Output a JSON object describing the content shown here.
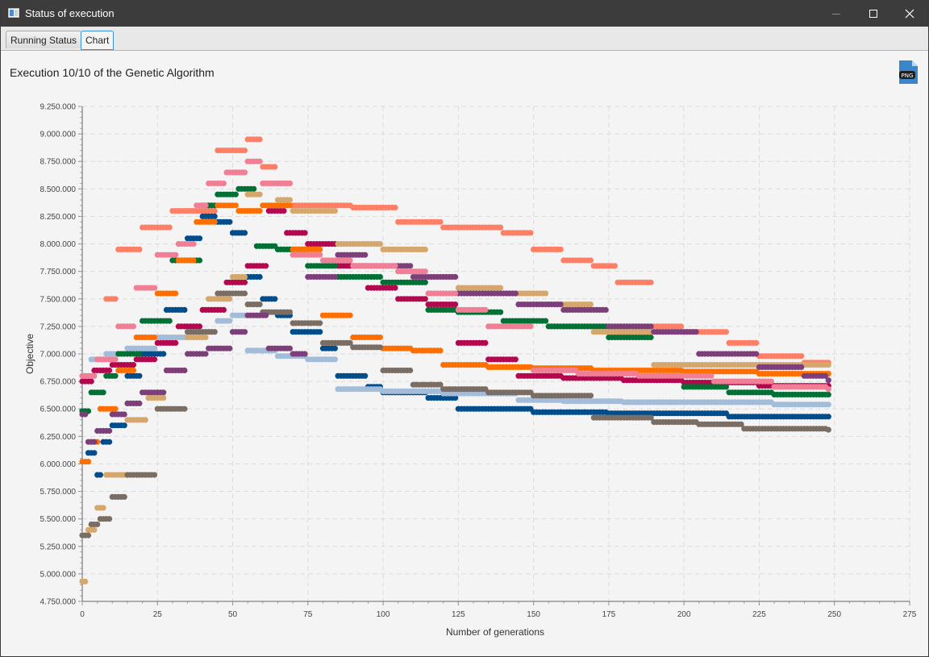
{
  "window": {
    "title": "Status of execution"
  },
  "tabs": [
    {
      "label": "Running Status",
      "active": false
    },
    {
      "label": "Chart",
      "active": true
    }
  ],
  "header": {
    "execution_title": "Execution 10/10 of the Genetic Algorithm",
    "png_label": "PNG"
  },
  "colors": {
    "titlebar": "#3c3c3c",
    "tab_active_border": "#3b8fd6"
  },
  "chart_data": {
    "type": "scatter",
    "title": "",
    "xlabel": "Number of generations",
    "ylabel": "Objective",
    "xlim": [
      0,
      275
    ],
    "ylim": [
      4750000,
      9250000
    ],
    "x_ticks": [
      "0",
      "25",
      "50",
      "75",
      "100",
      "125",
      "150",
      "175",
      "200",
      "225",
      "250",
      "275"
    ],
    "y_ticks": [
      "4.750.000",
      "5.000.000",
      "5.250.000",
      "5.500.000",
      "5.750.000",
      "6.000.000",
      "6.250.000",
      "6.500.000",
      "6.750.000",
      "7.000.000",
      "7.250.000",
      "7.500.000",
      "7.750.000",
      "8.000.000",
      "8.250.000",
      "8.500.000",
      "8.750.000",
      "9.000.000",
      "9.250.000"
    ],
    "grid": true,
    "legend": "none",
    "series": [
      {
        "color": "#ff7f66",
        "points": [
          [
            8,
            7500000
          ],
          [
            12,
            7950000
          ],
          [
            20,
            8150000
          ],
          [
            30,
            8300000
          ],
          [
            45,
            8850000
          ],
          [
            55,
            8950000
          ],
          [
            60,
            8700000
          ],
          [
            65,
            8550000
          ],
          [
            70,
            8350000
          ],
          [
            90,
            8330000
          ],
          [
            105,
            8200000
          ],
          [
            120,
            8150000
          ],
          [
            140,
            8100000
          ],
          [
            150,
            7950000
          ],
          [
            160,
            7850000
          ],
          [
            170,
            7800000
          ],
          [
            178,
            7650000
          ],
          [
            190,
            7250000
          ],
          [
            200,
            7200000
          ],
          [
            215,
            7100000
          ],
          [
            225,
            6980000
          ],
          [
            240,
            6920000
          ],
          [
            248,
            6920000
          ]
        ]
      },
      {
        "color": "#004d8c",
        "points": [
          [
            0,
            6480000
          ],
          [
            2,
            6100000
          ],
          [
            5,
            5900000
          ],
          [
            7,
            6200000
          ],
          [
            10,
            6350000
          ],
          [
            15,
            6800000
          ],
          [
            20,
            7000000
          ],
          [
            28,
            7400000
          ],
          [
            35,
            8050000
          ],
          [
            40,
            8250000
          ],
          [
            45,
            8200000
          ],
          [
            50,
            8100000
          ],
          [
            55,
            7700000
          ],
          [
            60,
            7500000
          ],
          [
            65,
            7350000
          ],
          [
            70,
            7200000
          ],
          [
            80,
            7050000
          ],
          [
            85,
            6800000
          ],
          [
            95,
            6700000
          ],
          [
            100,
            6650000
          ],
          [
            115,
            6600000
          ],
          [
            125,
            6500000
          ],
          [
            150,
            6470000
          ],
          [
            175,
            6460000
          ],
          [
            200,
            6460000
          ],
          [
            215,
            6430000
          ],
          [
            248,
            6430000
          ]
        ]
      },
      {
        "color": "#a3bcd9",
        "points": [
          [
            0,
            6800000
          ],
          [
            3,
            6950000
          ],
          [
            8,
            7000000
          ],
          [
            15,
            7050000
          ],
          [
            25,
            7150000
          ],
          [
            35,
            7200000
          ],
          [
            45,
            7300000
          ],
          [
            50,
            7350000
          ],
          [
            55,
            7030000
          ],
          [
            65,
            6980000
          ],
          [
            75,
            6950000
          ],
          [
            85,
            6680000
          ],
          [
            100,
            6660000
          ],
          [
            120,
            6640000
          ],
          [
            145,
            6580000
          ],
          [
            160,
            6570000
          ],
          [
            180,
            6560000
          ],
          [
            200,
            6560000
          ],
          [
            230,
            6540000
          ],
          [
            248,
            6540000
          ]
        ]
      },
      {
        "color": "#b4084e",
        "points": [
          [
            0,
            6750000
          ],
          [
            4,
            6850000
          ],
          [
            10,
            6900000
          ],
          [
            18,
            6950000
          ],
          [
            25,
            7100000
          ],
          [
            32,
            7250000
          ],
          [
            40,
            7400000
          ],
          [
            48,
            7650000
          ],
          [
            55,
            7800000
          ],
          [
            62,
            8300000
          ],
          [
            68,
            8100000
          ],
          [
            75,
            8000000
          ],
          [
            85,
            7800000
          ],
          [
            95,
            7600000
          ],
          [
            105,
            7500000
          ],
          [
            115,
            7450000
          ],
          [
            125,
            7100000
          ],
          [
            135,
            6950000
          ],
          [
            145,
            6800000
          ],
          [
            160,
            6780000
          ],
          [
            180,
            6760000
          ],
          [
            200,
            6740000
          ],
          [
            225,
            6710000
          ],
          [
            248,
            6710000
          ]
        ]
      },
      {
        "color": "#007034",
        "points": [
          [
            0,
            6480000
          ],
          [
            3,
            6650000
          ],
          [
            8,
            6800000
          ],
          [
            12,
            7000000
          ],
          [
            20,
            7300000
          ],
          [
            30,
            7850000
          ],
          [
            40,
            8350000
          ],
          [
            45,
            8450000
          ],
          [
            52,
            8500000
          ],
          [
            58,
            7980000
          ],
          [
            65,
            7950000
          ],
          [
            75,
            7800000
          ],
          [
            85,
            7700000
          ],
          [
            100,
            7650000
          ],
          [
            115,
            7400000
          ],
          [
            125,
            7380000
          ],
          [
            140,
            7300000
          ],
          [
            155,
            7250000
          ],
          [
            175,
            7150000
          ],
          [
            190,
            6800000
          ],
          [
            200,
            6700000
          ],
          [
            215,
            6650000
          ],
          [
            230,
            6630000
          ],
          [
            248,
            6630000
          ]
        ]
      },
      {
        "color": "#ff6f00",
        "points": [
          [
            0,
            6020000
          ],
          [
            3,
            6200000
          ],
          [
            6,
            6500000
          ],
          [
            12,
            6850000
          ],
          [
            18,
            7150000
          ],
          [
            25,
            7550000
          ],
          [
            32,
            7850000
          ],
          [
            38,
            8200000
          ],
          [
            45,
            8350000
          ],
          [
            52,
            8300000
          ],
          [
            60,
            8350000
          ],
          [
            70,
            7950000
          ],
          [
            80,
            7350000
          ],
          [
            90,
            7150000
          ],
          [
            100,
            7050000
          ],
          [
            110,
            7030000
          ],
          [
            120,
            6900000
          ],
          [
            135,
            6880000
          ],
          [
            150,
            6870000
          ],
          [
            170,
            6850000
          ],
          [
            200,
            6840000
          ],
          [
            225,
            6820000
          ],
          [
            248,
            6820000
          ]
        ]
      },
      {
        "color": "#d5a76d",
        "points": [
          [
            0,
            4930000
          ],
          [
            2,
            5400000
          ],
          [
            5,
            5600000
          ],
          [
            8,
            5900000
          ],
          [
            15,
            6400000
          ],
          [
            22,
            6600000
          ],
          [
            28,
            6850000
          ],
          [
            35,
            7150000
          ],
          [
            42,
            7500000
          ],
          [
            50,
            7700000
          ],
          [
            55,
            8450000
          ],
          [
            60,
            8550000
          ],
          [
            65,
            8400000
          ],
          [
            70,
            8300000
          ],
          [
            85,
            8000000
          ],
          [
            100,
            7950000
          ],
          [
            115,
            7700000
          ],
          [
            125,
            7600000
          ],
          [
            140,
            7550000
          ],
          [
            155,
            7450000
          ],
          [
            170,
            7200000
          ],
          [
            190,
            6900000
          ],
          [
            210,
            6900000
          ],
          [
            230,
            6900000
          ],
          [
            248,
            6900000
          ]
        ]
      },
      {
        "color": "#7a6d63",
        "points": [
          [
            0,
            5350000
          ],
          [
            3,
            5450000
          ],
          [
            6,
            5500000
          ],
          [
            10,
            5700000
          ],
          [
            15,
            5900000
          ],
          [
            25,
            6500000
          ],
          [
            35,
            7200000
          ],
          [
            45,
            7550000
          ],
          [
            55,
            7450000
          ],
          [
            60,
            7380000
          ],
          [
            70,
            7280000
          ],
          [
            80,
            7100000
          ],
          [
            90,
            7060000
          ],
          [
            100,
            6850000
          ],
          [
            110,
            6720000
          ],
          [
            120,
            6680000
          ],
          [
            135,
            6650000
          ],
          [
            150,
            6620000
          ],
          [
            170,
            6420000
          ],
          [
            190,
            6380000
          ],
          [
            205,
            6360000
          ],
          [
            220,
            6320000
          ],
          [
            248,
            6310000
          ]
        ]
      },
      {
        "color": "#7d3f79",
        "points": [
          [
            0,
            6450000
          ],
          [
            2,
            6200000
          ],
          [
            5,
            6300000
          ],
          [
            10,
            6450000
          ],
          [
            15,
            6550000
          ],
          [
            20,
            6650000
          ],
          [
            28,
            6850000
          ],
          [
            35,
            7000000
          ],
          [
            42,
            7050000
          ],
          [
            50,
            7200000
          ],
          [
            55,
            7350000
          ],
          [
            62,
            7050000
          ],
          [
            70,
            7000000
          ],
          [
            75,
            7700000
          ],
          [
            85,
            7900000
          ],
          [
            95,
            7800000
          ],
          [
            110,
            7700000
          ],
          [
            125,
            7550000
          ],
          [
            145,
            7450000
          ],
          [
            160,
            7400000
          ],
          [
            175,
            7250000
          ],
          [
            190,
            7200000
          ],
          [
            205,
            7000000
          ],
          [
            225,
            6880000
          ],
          [
            240,
            6800000
          ],
          [
            248,
            6760000
          ]
        ]
      },
      {
        "color": "#f07f95",
        "points": [
          [
            0,
            6800000
          ],
          [
            5,
            6950000
          ],
          [
            12,
            7250000
          ],
          [
            18,
            7600000
          ],
          [
            25,
            7900000
          ],
          [
            32,
            8000000
          ],
          [
            38,
            8350000
          ],
          [
            42,
            8550000
          ],
          [
            48,
            8650000
          ],
          [
            55,
            8750000
          ],
          [
            60,
            8550000
          ],
          [
            70,
            7900000
          ],
          [
            80,
            7850000
          ],
          [
            90,
            7800000
          ],
          [
            105,
            7750000
          ],
          [
            115,
            7550000
          ],
          [
            125,
            7400000
          ],
          [
            135,
            7250000
          ],
          [
            150,
            6850000
          ],
          [
            165,
            6820000
          ],
          [
            185,
            6800000
          ],
          [
            210,
            6750000
          ],
          [
            230,
            6700000
          ],
          [
            248,
            6680000
          ]
        ]
      }
    ]
  }
}
